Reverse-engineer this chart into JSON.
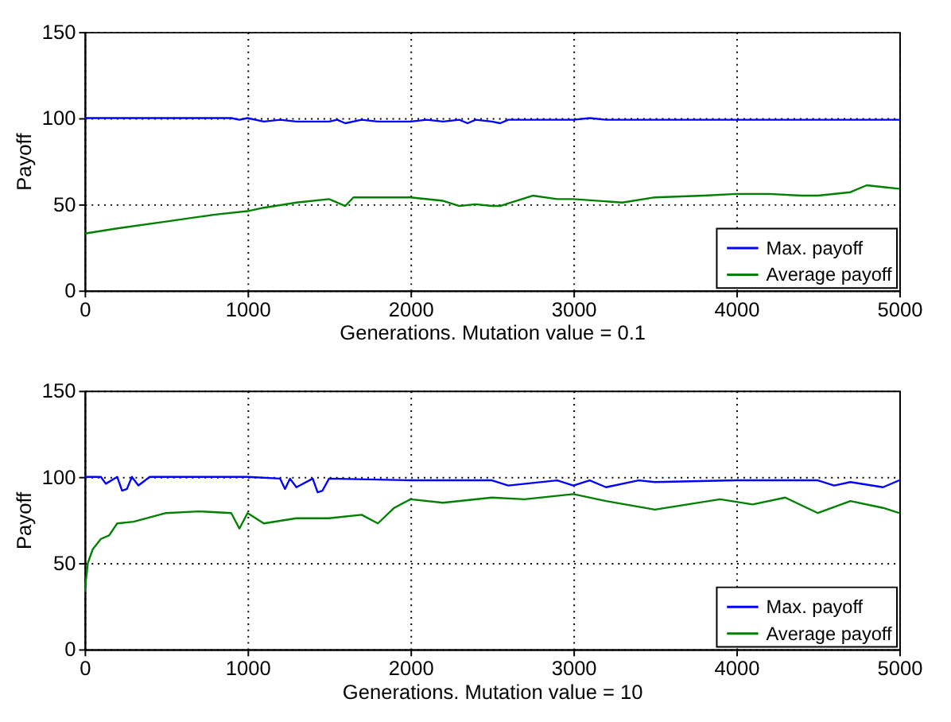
{
  "chart_data": [
    {
      "type": "line",
      "xlabel": "Generations. Mutation value = 0.1",
      "ylabel": "Payoff",
      "xlim": [
        0,
        5000
      ],
      "xticks": [
        0,
        1000,
        2000,
        3000,
        4000,
        5000
      ],
      "ylim": [
        0,
        150
      ],
      "yticks": [
        0,
        50,
        100,
        150
      ],
      "grid": true,
      "legend": "bottom right",
      "line_style": "solid",
      "series": [
        {
          "name": "Max. payoff",
          "color": "#0000ff",
          "x": [
            0,
            500,
            900,
            950,
            1000,
            1100,
            1200,
            1300,
            1400,
            1500,
            1550,
            1600,
            1700,
            1800,
            1900,
            2000,
            2100,
            2200,
            2300,
            2350,
            2400,
            2500,
            2550,
            2600,
            2800,
            3000,
            3100,
            3200,
            3500,
            4000,
            4500,
            5000
          ],
          "values": [
            100,
            100,
            100,
            99,
            100,
            98,
            99,
            98,
            98,
            98,
            99,
            97,
            99,
            98,
            98,
            98,
            99,
            98,
            99,
            97,
            99,
            98,
            97,
            99,
            99,
            99,
            100,
            99,
            99,
            99,
            99,
            99
          ]
        },
        {
          "name": "Average payoff",
          "color": "#008000",
          "x": [
            0,
            200,
            500,
            800,
            1000,
            1100,
            1300,
            1500,
            1600,
            1650,
            1800,
            2000,
            2200,
            2300,
            2400,
            2500,
            2550,
            2750,
            2900,
            3000,
            3300,
            3500,
            3800,
            4000,
            4200,
            4400,
            4500,
            4700,
            4800,
            4900,
            5000
          ],
          "values": [
            33,
            36,
            40,
            44,
            46,
            48,
            51,
            53,
            49,
            54,
            54,
            54,
            52,
            49,
            50,
            49,
            49,
            55,
            53,
            53,
            51,
            54,
            55,
            56,
            56,
            55,
            55,
            57,
            61,
            60,
            59
          ]
        }
      ]
    },
    {
      "type": "line",
      "xlabel": "Generations. Mutation value = 10",
      "ylabel": "Payoff",
      "xlim": [
        0,
        5000
      ],
      "xticks": [
        0,
        1000,
        2000,
        3000,
        4000,
        5000
      ],
      "ylim": [
        0,
        150
      ],
      "yticks": [
        0,
        50,
        100,
        150
      ],
      "grid": true,
      "legend": "bottom right",
      "line_style": "solid",
      "series": [
        {
          "name": "Max. payoff",
          "color": "#0000ff",
          "x": [
            0,
            100,
            130,
            200,
            230,
            260,
            290,
            330,
            400,
            1000,
            1200,
            1230,
            1260,
            1300,
            1400,
            1430,
            1460,
            1500,
            2000,
            2500,
            2600,
            2900,
            3000,
            3100,
            3200,
            3400,
            3500,
            4000,
            4500,
            4600,
            4700,
            4900,
            5000
          ],
          "values": [
            100,
            100,
            96,
            100,
            92,
            93,
            100,
            95,
            100,
            100,
            99,
            93,
            99,
            94,
            99,
            91,
            92,
            99,
            98,
            98,
            95,
            98,
            95,
            98,
            94,
            98,
            97,
            98,
            98,
            95,
            97,
            94,
            98
          ]
        },
        {
          "name": "Average payoff",
          "color": "#008000",
          "x": [
            0,
            20,
            50,
            100,
            150,
            200,
            300,
            500,
            700,
            900,
            950,
            1000,
            1100,
            1300,
            1500,
            1700,
            1800,
            1900,
            2000,
            2200,
            2500,
            2700,
            3000,
            3200,
            3500,
            3700,
            3900,
            4100,
            4300,
            4500,
            4700,
            4900,
            5000
          ],
          "values": [
            33,
            50,
            58,
            64,
            66,
            73,
            74,
            79,
            80,
            79,
            70,
            79,
            73,
            76,
            76,
            78,
            73,
            82,
            87,
            85,
            88,
            87,
            90,
            86,
            81,
            84,
            87,
            84,
            88,
            79,
            86,
            82,
            79
          ]
        }
      ]
    }
  ]
}
